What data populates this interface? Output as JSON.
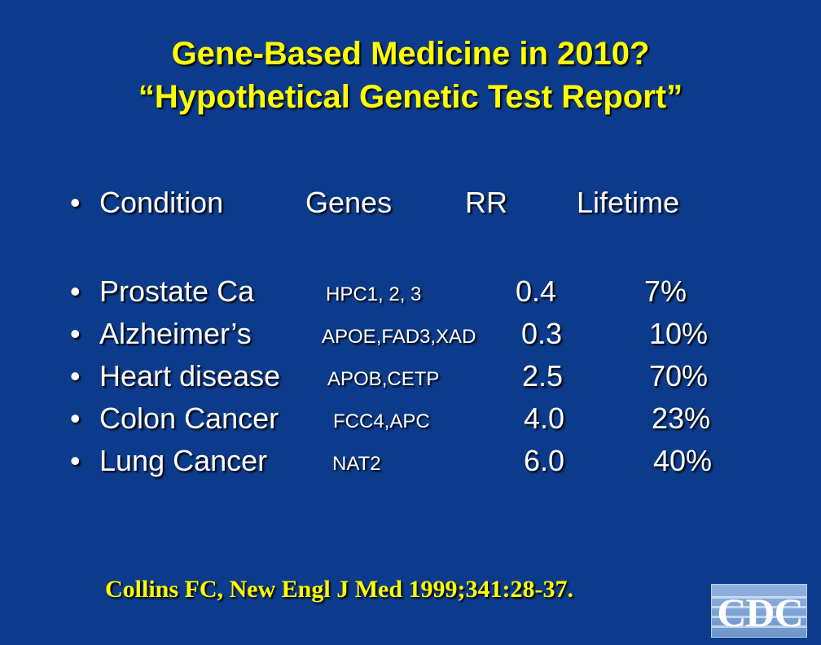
{
  "title": {
    "line1": "Gene-Based Medicine in 2010?",
    "line2": "“Hypothetical Genetic Test Report”"
  },
  "header": {
    "bullet": "•",
    "condition": "Condition",
    "genes": "Genes",
    "rr": "RR",
    "lifetime": "Lifetime"
  },
  "rows": [
    {
      "bullet": "•",
      "condition": "Prostate Ca",
      "genes": "HPC1, 2, 3",
      "rr": "0.4",
      "lifetime": "7%"
    },
    {
      "bullet": "•",
      "condition": "Alzheimer’s",
      "genes": "APOE,FAD3,XAD",
      "rr": "0.3",
      "lifetime": "10%"
    },
    {
      "bullet": "•",
      "condition": "Heart disease",
      "genes": "APOB,CETP",
      "rr": "2.5",
      "lifetime": "70%"
    },
    {
      "bullet": "•",
      "condition": "Colon Cancer",
      "genes": "FCC4,APC",
      "rr": "4.0",
      "lifetime": "23%"
    },
    {
      "bullet": "•",
      "condition": "Lung Cancer",
      "genes": "NAT2",
      "rr": "6.0",
      "lifetime": "40%"
    }
  ],
  "citation": "Collins FC, New Engl J Med 1999;341:28-37.",
  "logo": {
    "text": "CDC"
  },
  "colors": {
    "background": "#0d3b8c",
    "title": "#ffff00",
    "body_text": "#ffffff",
    "citation": "#ffff00"
  }
}
